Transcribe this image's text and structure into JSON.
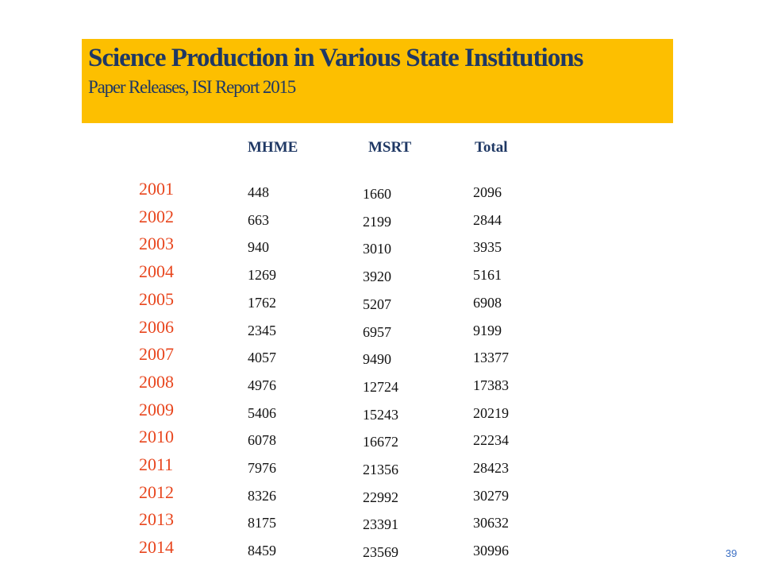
{
  "slide": {
    "title": "Science Production in Various State Institutions",
    "subtitle": "Paper Releases, ISI Report 2015",
    "page_number": "39"
  },
  "table": {
    "headers": [
      "MHME",
      "MSRT",
      "Total"
    ],
    "rows": [
      {
        "year": "2001",
        "mhme": "448",
        "msrt": "1660",
        "total": "2096"
      },
      {
        "year": "2002",
        "mhme": "663",
        "msrt": "2199",
        "total": "2844"
      },
      {
        "year": "2003",
        "mhme": "940",
        "msrt": "3010",
        "total": "3935"
      },
      {
        "year": "2004",
        "mhme": "1269",
        "msrt": "3920",
        "total": "5161"
      },
      {
        "year": "2005",
        "mhme": "1762",
        "msrt": "5207",
        "total": "6908"
      },
      {
        "year": "2006",
        "mhme": "2345",
        "msrt": "6957",
        "total": "9199"
      },
      {
        "year": "2007",
        "mhme": "4057",
        "msrt": "9490",
        "total": "13377"
      },
      {
        "year": "2008",
        "mhme": "4976",
        "msrt": "12724",
        "total": "17383"
      },
      {
        "year": "2009",
        "mhme": "5406",
        "msrt": "15243",
        "total": "20219"
      },
      {
        "year": "2010",
        "mhme": "6078",
        "msrt": "16672",
        "total": "22234"
      },
      {
        "year": "2011",
        "mhme": "7976",
        "msrt": "21356",
        "total": "28423"
      },
      {
        "year": "2012",
        "mhme": "8326",
        "msrt": "22992",
        "total": "30279"
      },
      {
        "year": "2013",
        "mhme": "8175",
        "msrt": "23391",
        "total": "30632"
      },
      {
        "year": "2014",
        "mhme": "8459",
        "msrt": "23569",
        "total": "30996"
      }
    ]
  },
  "colors": {
    "banner": "#fdbf00",
    "title_text": "#1f3864",
    "year_text": "#e8461e",
    "page_number": "#3b6fc4"
  }
}
